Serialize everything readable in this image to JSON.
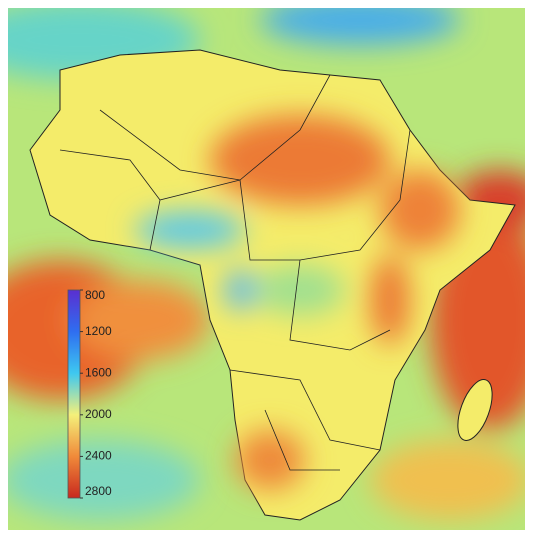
{
  "colorbar": {
    "range": [
      800,
      2800
    ],
    "ticks": [
      800,
      1200,
      1600,
      2000,
      2400,
      2800
    ],
    "colors": [
      "#5a2fd0",
      "#2f6ef0",
      "#3ec8f0",
      "#f4f07a",
      "#f08a3a",
      "#c8281e"
    ]
  }
}
